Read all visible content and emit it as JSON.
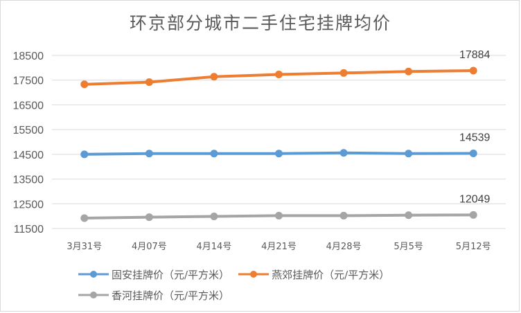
{
  "title": "环京部分城市二手住宅挂牌均价",
  "colors": {
    "guan": "#5b9bd5",
    "yanjiao": "#ed7d31",
    "xianghe": "#a5a5a5",
    "grid": "#d9d9d9",
    "text": "#595959"
  },
  "chart_data": {
    "type": "line",
    "title": "环京部分城市二手住宅挂牌均价",
    "xlabel": "",
    "ylabel": "",
    "categories": [
      "3月31号",
      "4月07号",
      "4月14号",
      "4月21号",
      "4月28号",
      "5月5号",
      "5月12号"
    ],
    "y_ticks": [
      11500,
      12500,
      13500,
      14500,
      15500,
      16500,
      17500,
      18500
    ],
    "ylim": [
      11500,
      18500
    ],
    "grid": true,
    "legend_position": "bottom",
    "series": [
      {
        "name": "固安挂牌价（元/平方米）",
        "color": "#5b9bd5",
        "values": [
          14500,
          14530,
          14530,
          14530,
          14560,
          14530,
          14539
        ],
        "end_label": "14539"
      },
      {
        "name": "燕郊挂牌价（元/平方米）",
        "color": "#ed7d31",
        "values": [
          17330,
          17420,
          17640,
          17730,
          17790,
          17850,
          17884
        ],
        "end_label": "17884"
      },
      {
        "name": "香河挂牌价（元/平方米）",
        "color": "#a5a5a5",
        "values": [
          11920,
          11960,
          11990,
          12020,
          12020,
          12040,
          12049
        ],
        "end_label": "12049"
      }
    ]
  },
  "legend": {
    "items": [
      {
        "label": "固安挂牌价（元/平方米）",
        "color": "#5b9bd5"
      },
      {
        "label": "燕郊挂牌价（元/平方米）",
        "color": "#ed7d31"
      },
      {
        "label": "香河挂牌价（元/平方米）",
        "color": "#a5a5a5"
      }
    ]
  }
}
